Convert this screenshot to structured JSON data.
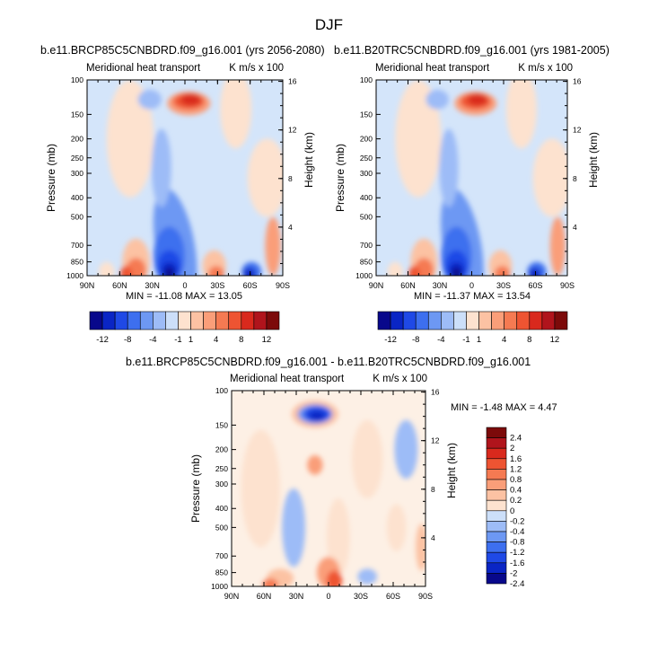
{
  "figure_title": "DJF",
  "colors": {
    "levels12": [
      "#08088b",
      "#0a25c5",
      "#1f49e6",
      "#3d6fef",
      "#6d98f3",
      "#9dbcf7",
      "#ccdff9",
      "#fde2cf",
      "#fcc2a3",
      "#fa9e79",
      "#f57a52",
      "#ee5432",
      "#d9291d",
      "#b0141c",
      "#7c0a0a"
    ],
    "levels_diff": [
      "#08088b",
      "#0a25c5",
      "#1f49e6",
      "#3d6fef",
      "#6d98f3",
      "#9dbcf7",
      "#ccdff9",
      "#fde2cf",
      "#fcc2a3",
      "#fa9e79",
      "#f57a52",
      "#ee5432",
      "#d9291d",
      "#b0141c",
      "#7c0a0a"
    ]
  },
  "chart_data": [
    {
      "type": "heatmap",
      "title": "b.e11.BRCP85C5CNBDRD.f09_g16.001 (yrs 2056-2080)",
      "subtitle_left": "Meridional heat transport",
      "subtitle_right": "K m/s x 100",
      "ylabel": "Pressure (mb)",
      "ylabel_right": "Height (km)",
      "x_ticks": [
        "90N",
        "60N",
        "30N",
        "0",
        "30S",
        "60S",
        "90S"
      ],
      "y_ticks": [
        "100",
        "150",
        "200",
        "250",
        "300",
        "400",
        "500",
        "700",
        "850",
        "1000"
      ],
      "y_ticks_right": [
        "16",
        "12",
        "8",
        "4"
      ],
      "min_max": "MIN = -11.08   MAX =  13.05",
      "colorbar_labels": [
        "-12",
        "-8",
        "-4",
        "-1",
        "1",
        "4",
        "8",
        "12"
      ]
    },
    {
      "type": "heatmap",
      "title": "b.e11.B20TRC5CNBDRD.f09_g16.001 (yrs 1981-2005)",
      "subtitle_left": "Meridional heat transport",
      "subtitle_right": "K m/s x 100",
      "ylabel": "Pressure (mb)",
      "ylabel_right": "Height (km)",
      "x_ticks": [
        "90N",
        "60N",
        "30N",
        "0",
        "30S",
        "60S",
        "90S"
      ],
      "y_ticks": [
        "100",
        "150",
        "200",
        "250",
        "300",
        "400",
        "500",
        "700",
        "850",
        "1000"
      ],
      "y_ticks_right": [
        "16",
        "12",
        "8",
        "4"
      ],
      "min_max": "MIN = -11.37   MAX =  13.54",
      "colorbar_labels": [
        "-12",
        "-8",
        "-4",
        "-1",
        "1",
        "4",
        "8",
        "12"
      ]
    },
    {
      "type": "heatmap",
      "title": "b.e11.BRCP85C5CNBDRD.f09_g16.001 - b.e11.B20TRC5CNBDRD.f09_g16.001",
      "subtitle_left": "Meridional heat transport",
      "subtitle_right": "K m/s x 100",
      "ylabel": "Pressure (mb)",
      "ylabel_right": "Height (km)",
      "x_ticks": [
        "90N",
        "60N",
        "30N",
        "0",
        "30S",
        "60S",
        "90S"
      ],
      "y_ticks": [
        "100",
        "150",
        "200",
        "250",
        "300",
        "400",
        "500",
        "700",
        "850",
        "1000"
      ],
      "y_ticks_right": [
        "16",
        "12",
        "8",
        "4"
      ],
      "min_max": "MIN =  -1.48   MAX =   4.47",
      "colorbar_labels": [
        "2.4",
        "2",
        "1.6",
        "1.2",
        "0.8",
        "0.4",
        "0.2",
        "0",
        "-0.2",
        "-0.4",
        "-0.8",
        "-1.2",
        "-1.6",
        "-2",
        "-2.4"
      ]
    }
  ]
}
